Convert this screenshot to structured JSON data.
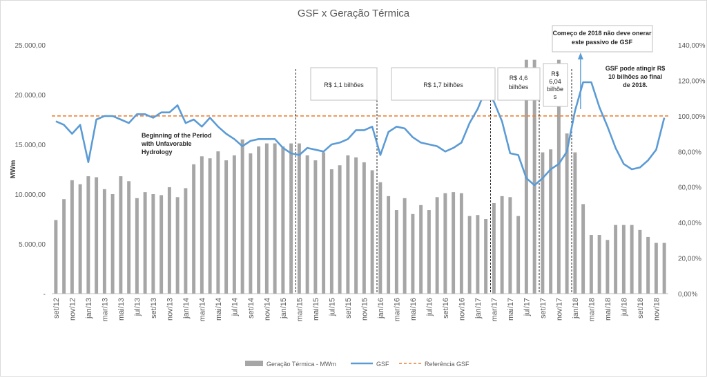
{
  "chart_data": {
    "type": "bar",
    "title": "GSF x Geração Térmica",
    "ylabel": "MWm",
    "ylim": [
      0,
      25000
    ],
    "y2lim": [
      0,
      140
    ],
    "y_ticks": [
      "-",
      "5.000,00",
      "10.000,00",
      "15.000,00",
      "20.000,00",
      "25.000,00"
    ],
    "y2_ticks": [
      "0,00%",
      "20,00%",
      "40,00%",
      "60,00%",
      "80,00%",
      "100,00%",
      "120,00%",
      "140,00%"
    ],
    "months": [
      "set/12",
      "out/12",
      "nov/12",
      "dez/12",
      "jan/13",
      "fev/13",
      "mar/13",
      "abr/13",
      "mai/13",
      "jun/13",
      "jul/13",
      "ago/13",
      "set/13",
      "out/13",
      "nov/13",
      "dez/13",
      "jan/14",
      "fev/14",
      "mar/14",
      "abr/14",
      "mai/14",
      "jun/14",
      "jul/14",
      "ago/14",
      "set/14",
      "out/14",
      "nov/14",
      "dez/14",
      "jan/15",
      "fev/15",
      "mar/15",
      "abr/15",
      "mai/15",
      "jun/15",
      "jul/15",
      "ago/15",
      "set/15",
      "out/15",
      "nov/15",
      "dez/15",
      "jan/16",
      "fev/16",
      "mar/16",
      "abr/16",
      "mai/16",
      "jun/16",
      "jul/16",
      "ago/16",
      "set/16",
      "out/16",
      "nov/16",
      "dez/16",
      "jan/17",
      "fev/17",
      "mar/17",
      "abr/17",
      "mai/17",
      "jun/17",
      "jul/17",
      "ago/17",
      "set/17",
      "out/17",
      "nov/17",
      "dez/17",
      "jan/18",
      "fev/18",
      "mar/18",
      "abr/18",
      "mai/18",
      "jun/18",
      "jul/18",
      "ago/18",
      "set/18",
      "out/18",
      "nov/18",
      "dez/18"
    ],
    "tick_labels": [
      "set/12",
      "nov/12",
      "jan/13",
      "mar/13",
      "mai/13",
      "jul/13",
      "set/13",
      "nov/13",
      "jan/14",
      "mar/14",
      "mai/14",
      "jul/14",
      "set/14",
      "nov/14",
      "jan/15",
      "mar/15",
      "mai/15",
      "jul/15",
      "set/15",
      "nov/15",
      "jan/16",
      "mar/16",
      "mai/16",
      "jul/16",
      "set/16",
      "nov/16",
      "jan/17",
      "mar/17",
      "mai/17",
      "jul/17",
      "set/17",
      "nov/17",
      "jan/18",
      "mar/18",
      "mai/18",
      "jul/18",
      "set/18",
      "nov/18"
    ],
    "series": [
      {
        "name": "Geração Térmica - MWm",
        "type": "bar",
        "axis": "left",
        "color": "#a6a6a6",
        "values": [
          7400,
          9500,
          11400,
          11000,
          11800,
          11700,
          10500,
          10000,
          11800,
          11300,
          9600,
          10200,
          10000,
          9900,
          10700,
          9700,
          10600,
          13000,
          13800,
          13600,
          14300,
          13400,
          13900,
          15500,
          14100,
          14800,
          15100,
          15100,
          14800,
          15100,
          15100,
          13900,
          13400,
          14200,
          12500,
          12900,
          13900,
          13700,
          13200,
          12400,
          11200,
          9800,
          8400,
          9600,
          8000,
          8900,
          8400,
          9700,
          10100,
          10200,
          10100,
          7800,
          7900,
          7500,
          9100,
          9800,
          9700,
          7800,
          23500,
          23500,
          14200,
          14500,
          23500,
          16100,
          14200,
          9000,
          5900,
          5900,
          5400,
          6900,
          6900,
          6900,
          6400,
          5700,
          5100,
          5100
        ]
      },
      {
        "name": "GSF",
        "type": "line",
        "axis": "right",
        "color": "#5b9bd5",
        "values": [
          97,
          95,
          90,
          95,
          74,
          98,
          100,
          100,
          98,
          96,
          101,
          101,
          99,
          102,
          102,
          106,
          96,
          98,
          94,
          99,
          94,
          90,
          87,
          83,
          86,
          87,
          87,
          87,
          82,
          79,
          78,
          82,
          81,
          80,
          84,
          85,
          87,
          92,
          92,
          94,
          78,
          91,
          94,
          93,
          88,
          85,
          84,
          83,
          80,
          82,
          85,
          96,
          104,
          115,
          108,
          97,
          79,
          78,
          65,
          61,
          65,
          70,
          73,
          80,
          103,
          119,
          119,
          105,
          94,
          82,
          73,
          70,
          71,
          75,
          81,
          99
        ]
      },
      {
        "name": "Referência GSF",
        "type": "line",
        "axis": "right",
        "color": "#ed7d31",
        "dashed": true,
        "values": [
          100
        ]
      }
    ],
    "dividers": [
      "mar/15",
      "jan/16",
      "mar/17",
      "set/17",
      "jan/18"
    ],
    "annotations": [
      {
        "text": [
          "R$ 1,1 bilhões"
        ]
      },
      {
        "text": [
          "R$ 1,7 bilhões"
        ]
      },
      {
        "text": [
          "R$ 4,6",
          "bilhões"
        ]
      },
      {
        "text": [
          "R$",
          "6,04",
          "bilhõe",
          "s"
        ]
      },
      {
        "text": [
          "Começo de 2018 não deve onerar",
          "este passivo de GSF"
        ]
      },
      {
        "text": [
          "GSF pode atingir R$",
          "10 bilhões ao final",
          "de 2018."
        ]
      },
      {
        "text": [
          "Beginning of the Period",
          "with Unfavorable",
          "Hydrology"
        ]
      }
    ],
    "legend_position": "bottom"
  }
}
